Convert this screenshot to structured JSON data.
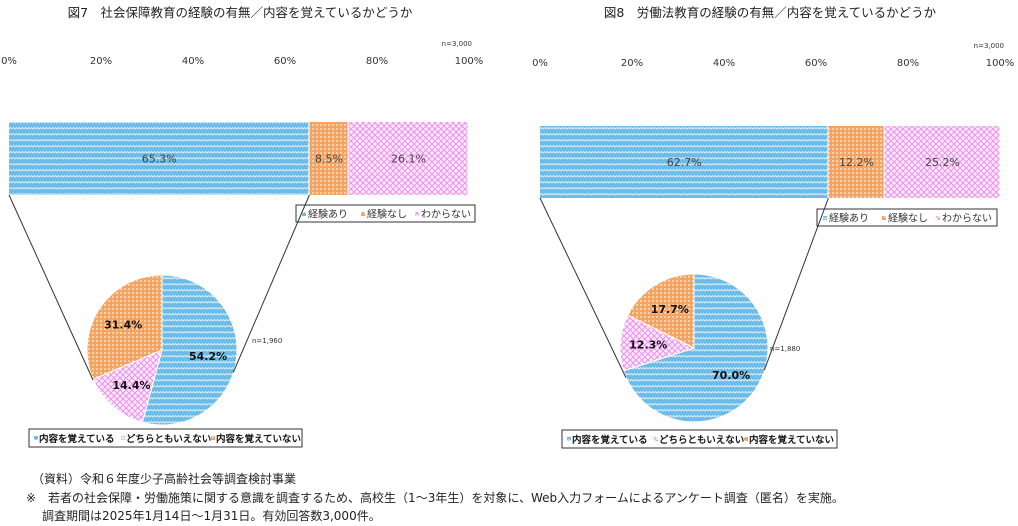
{
  "colors": {
    "blue": "#5cb3e4",
    "blue_light": "#bfe3f6",
    "orange": "#f2a86a",
    "orange_light": "#fbd9b8",
    "pink": "#ee9cee",
    "pink_light": "#fde6fd"
  },
  "chart_data": [
    {
      "type": "bar+pie",
      "title": "図7　社会保障教育の経験の有無／内容を覚えているかどうか",
      "axis_ticks": [
        "0%",
        "20%",
        "40%",
        "60%",
        "80%",
        "100%"
      ],
      "xlim": [
        0,
        100
      ],
      "bar_n": "n=3,000",
      "bar": {
        "categories": [
          "経験あり",
          "経験なし",
          "わからない"
        ],
        "values": [
          65.3,
          8.5,
          26.1
        ],
        "labels": [
          "65.3%",
          "8.5%",
          "26.1%"
        ]
      },
      "bar_legend": [
        "経験あり",
        "経験なし",
        "わからない"
      ],
      "pie_n": "n=1,960",
      "pie": {
        "categories": [
          "内容を覚えている",
          "どちらともいえない",
          "内容を覚えていない"
        ],
        "values": [
          54.2,
          14.4,
          31.4
        ],
        "labels": [
          "54.2%",
          "14.4%",
          "31.4%"
        ]
      },
      "pie_legend": [
        "内容を覚えている",
        "どちらともいえない",
        "内容を覚えていない"
      ]
    },
    {
      "type": "bar+pie",
      "title": "図8　労働法教育の経験の有無／内容を覚えているかどうか",
      "axis_ticks": [
        "0%",
        "20%",
        "40%",
        "60%",
        "80%",
        "100%"
      ],
      "xlim": [
        0,
        100
      ],
      "bar_n": "n=3,000",
      "bar": {
        "categories": [
          "経験あり",
          "経験なし",
          "わからない"
        ],
        "values": [
          62.7,
          12.2,
          25.2
        ],
        "labels": [
          "62.7%",
          "12.2%",
          "25.2%"
        ]
      },
      "bar_legend": [
        "経験あり",
        "経験なし",
        "わからない"
      ],
      "pie_n": "n=1,880",
      "pie": {
        "categories": [
          "内容を覚えている",
          "どちらともいえない",
          "内容を覚えていない"
        ],
        "values": [
          70.0,
          12.3,
          17.7
        ],
        "labels": [
          "70.0%",
          "12.3%",
          "17.7%"
        ]
      },
      "pie_legend": [
        "内容を覚えている",
        "どちらともいえない",
        "内容を覚えていない"
      ]
    }
  ],
  "notes": {
    "source": "（資料）令和６年度少子高齢社会等調査検討事業",
    "line1": "※　若者の社会保障・労働施策に関する意識を調査するため、高校生（1～3年生）を対象に、Web入力フォームによるアンケート調査（匿名）を実施。",
    "line2": "調査期間は2025年1月14日～1月31日。有効回答数3,000件。"
  }
}
